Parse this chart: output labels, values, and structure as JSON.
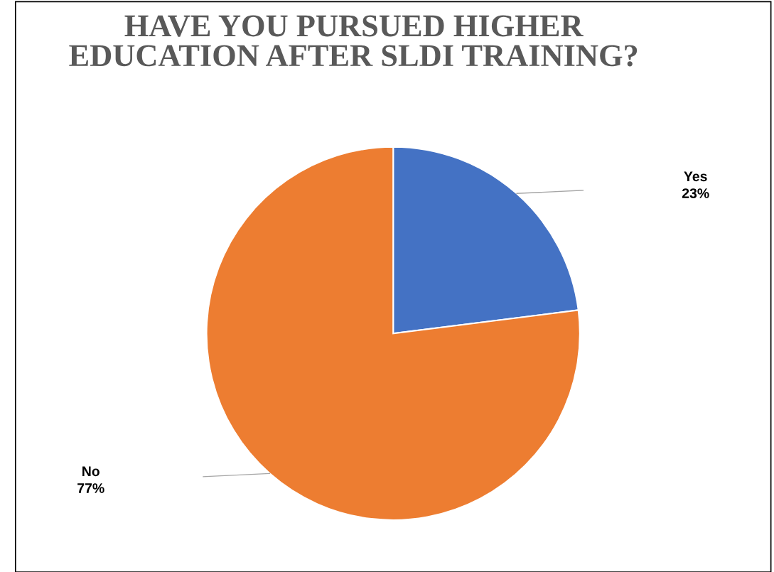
{
  "chart_data": {
    "type": "pie",
    "title": "HAVE YOU PURSUED HIGHER\nEDUCATION AFTER SLDI TRAINING?",
    "categories": [
      "Yes",
      "No"
    ],
    "values": [
      23,
      77
    ],
    "colors": [
      "#4472c4",
      "#ed7d31"
    ],
    "value_labels": [
      "23%",
      "77%"
    ],
    "legend": false
  }
}
